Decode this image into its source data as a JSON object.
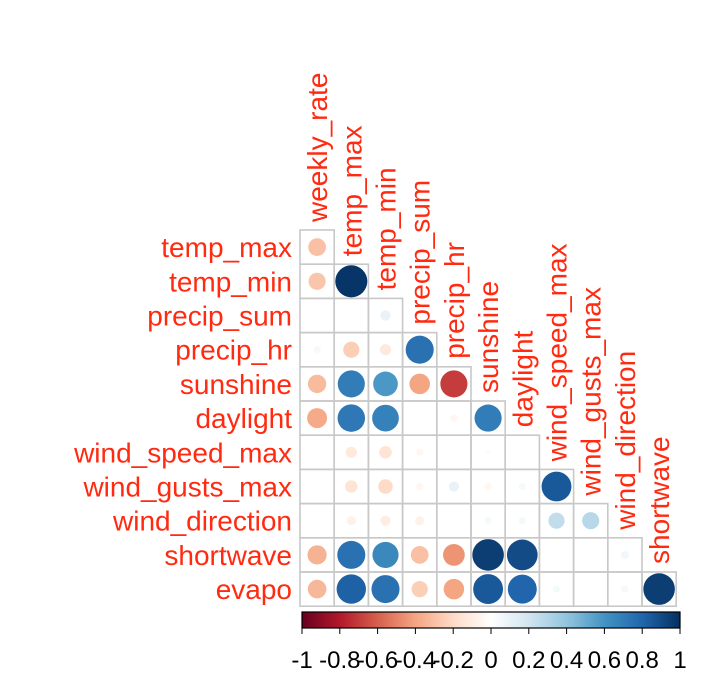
{
  "chart_data": {
    "type": "heatmap",
    "title": "",
    "layout": "lower-triangle correlation matrix (circles)",
    "row_labels": [
      "temp_max",
      "temp_min",
      "precip_sum",
      "precip_hr",
      "sunshine",
      "daylight",
      "wind_speed_max",
      "wind_gusts_max",
      "wind_direction",
      "shortwave",
      "evapo"
    ],
    "column_labels": [
      "weekly_rate",
      "temp_max",
      "temp_min",
      "precip_sum",
      "precip_hr",
      "sunshine",
      "daylight",
      "wind_speed_max",
      "wind_gusts_max",
      "wind_direction",
      "shortwave"
    ],
    "values": [
      [
        -0.3
      ],
      [
        -0.28,
        0.98
      ],
      [
        0.0,
        0.0,
        0.1
      ],
      [
        0.05,
        -0.25,
        -0.12,
        0.75
      ],
      [
        -0.32,
        0.7,
        0.58,
        -0.4,
        -0.7
      ],
      [
        -0.38,
        0.72,
        0.68,
        0.0,
        -0.05,
        0.7
      ],
      [
        0.0,
        -0.12,
        -0.15,
        -0.05,
        0.0,
        0.02,
        0.0
      ],
      [
        0.0,
        -0.15,
        -0.2,
        -0.05,
        0.1,
        -0.05,
        0.05,
        0.85
      ],
      [
        0.0,
        -0.08,
        -0.1,
        -0.08,
        0.0,
        0.05,
        0.05,
        0.25,
        0.28
      ],
      [
        -0.35,
        0.75,
        0.65,
        -0.3,
        -0.45,
        0.95,
        0.9,
        0.0,
        0.0,
        0.06
      ],
      [
        -0.33,
        0.82,
        0.75,
        -0.25,
        -0.4,
        0.85,
        0.8,
        0.05,
        0.0,
        0.05,
        0.95
      ]
    ],
    "colorbar": {
      "range": [
        -1,
        1
      ],
      "tick_labels": [
        "-1",
        "-0.8",
        "-0.6",
        "-0.4",
        "-0.2",
        "0",
        "0.2",
        "0.4",
        "0.6",
        "0.8",
        "1"
      ],
      "colors": [
        "#67001f",
        "#b2182b",
        "#d6604d",
        "#f4a582",
        "#fddbc7",
        "#ffffff",
        "#d1e5f0",
        "#92c5de",
        "#4393c3",
        "#2166ac",
        "#053061"
      ]
    },
    "colors": {
      "label": "#ff2a10",
      "grid": "#c8c8c8",
      "text": "#000000"
    }
  }
}
